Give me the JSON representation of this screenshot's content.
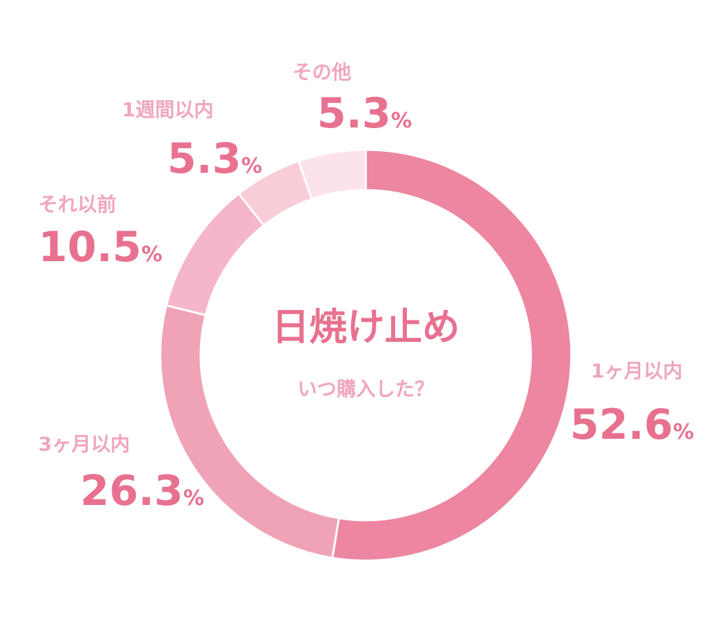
{
  "chart_data": {
    "type": "donut",
    "title": "日焼け止め",
    "subtitle": "いつ購入した？",
    "categories": [
      "1ヶ月以内",
      "3ヶ月以内",
      "それ以前",
      "1週間以内",
      "その他"
    ],
    "values": [
      52.6,
      26.3,
      10.5,
      5.3,
      5.3
    ],
    "unit": "%",
    "colors": [
      "#ed86a0",
      "#f0a2b6",
      "#f4b6c8",
      "#f8cdd8",
      "#fbe3e9"
    ]
  }
}
